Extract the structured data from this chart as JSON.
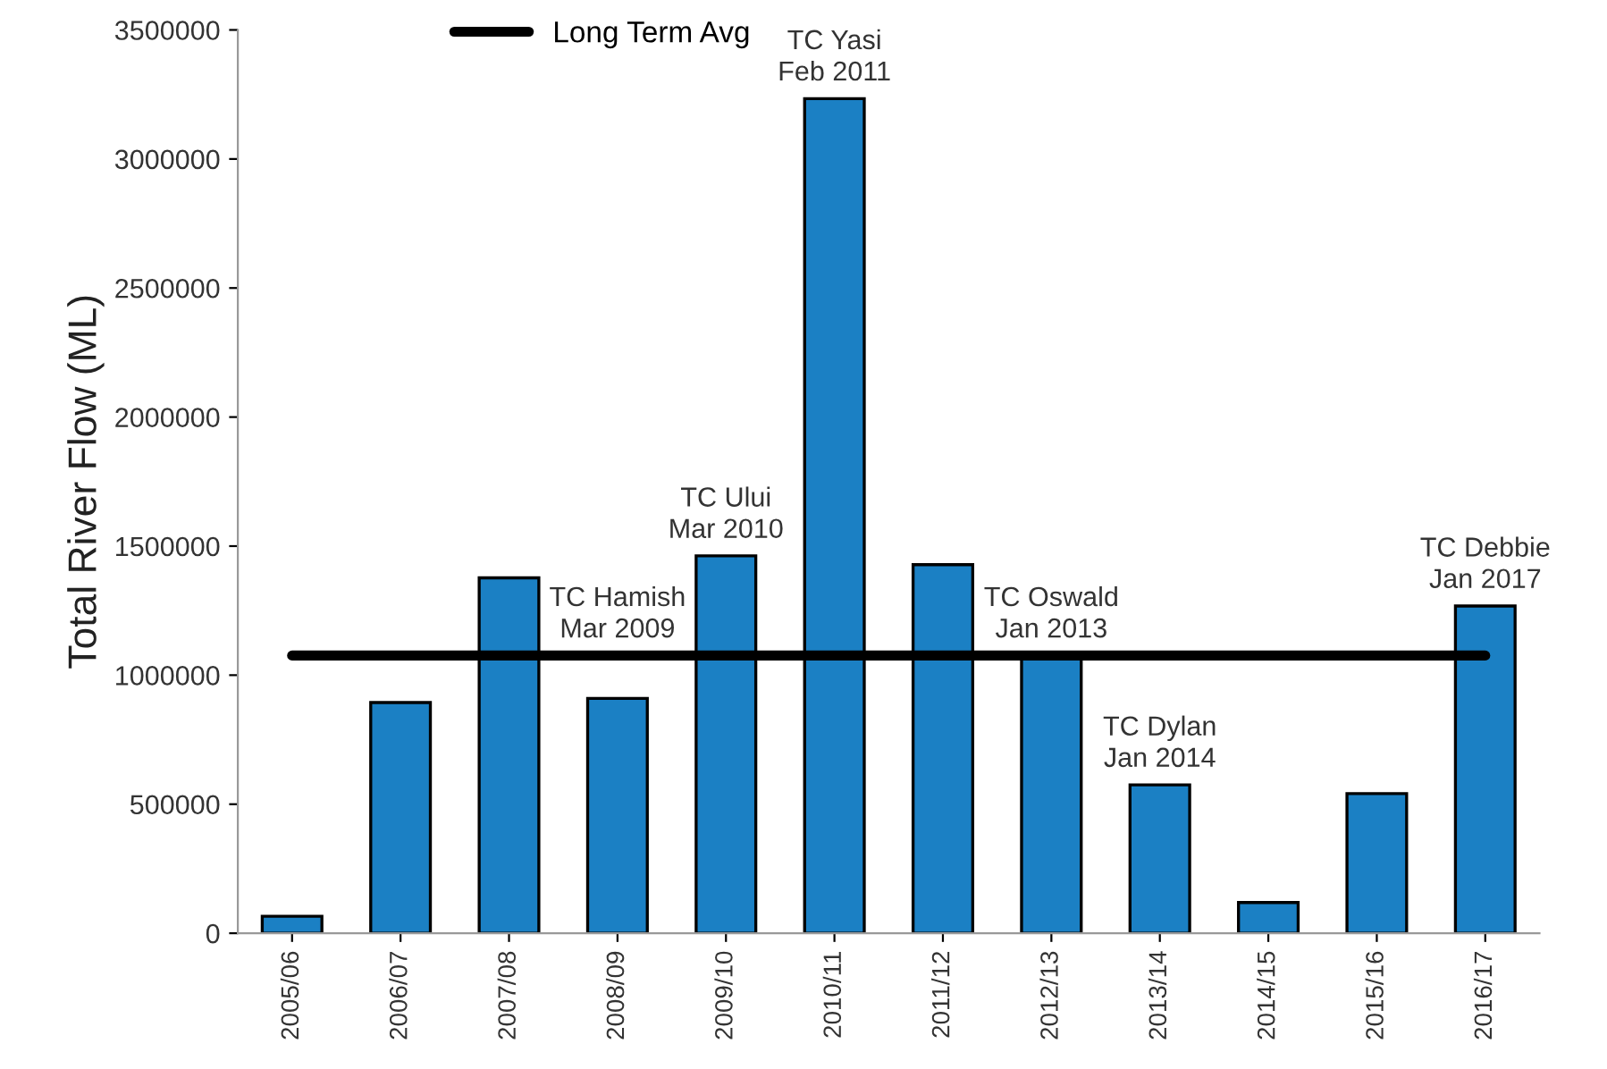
{
  "chart_data": {
    "type": "bar",
    "ylabel": "Total River Flow (ML)",
    "categories": [
      "2005/06",
      "2006/07",
      "2007/08",
      "2008/09",
      "2009/10",
      "2010/11",
      "2011/12",
      "2012/13",
      "2013/14",
      "2014/15",
      "2015/16",
      "2016/17"
    ],
    "values": [
      66000,
      894000,
      1377000,
      910000,
      1462000,
      3234000,
      1428000,
      1062000,
      575000,
      119000,
      541000,
      1268000
    ],
    "color": "#1b80c4",
    "ylim": [
      0,
      3500000
    ],
    "yticks": [
      0,
      500000,
      1000000,
      1500000,
      2000000,
      2500000,
      3000000,
      3500000
    ],
    "grid": false,
    "legend": "top",
    "ref_lines": [
      {
        "axis": "y",
        "value": 1076000,
        "label": "Long Term Avg",
        "color": "#000000"
      }
    ],
    "annotations": [
      {
        "text": "TC Hamish\nMar 2009",
        "x": "2008/09",
        "y": 910000
      },
      {
        "text": "TC Ului\nMar 2010",
        "x": "2009/10",
        "y": 1462000
      },
      {
        "text": "TC Yasi\nFeb 2011",
        "x": "2010/11",
        "y": 3234000
      },
      {
        "text": "TC Oswald\nJan 2013",
        "x": "2012/13",
        "y": 1062000
      },
      {
        "text": "TC Dylan\nJan 2014",
        "x": "2013/14",
        "y": 575000
      },
      {
        "text": "TC Debbie\nJan 2017",
        "x": "2016/17",
        "y": 1268000
      }
    ]
  }
}
